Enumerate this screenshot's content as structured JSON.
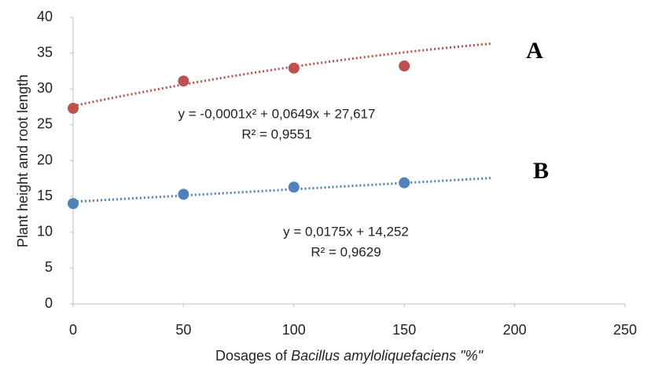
{
  "chart_data": {
    "type": "scatter",
    "xlabel": [
      "Dosages of ",
      "Bacillus amyloliquefaciens \"%\""
    ],
    "ylabel": "Plant height and root length",
    "xlim": [
      0,
      250
    ],
    "xticks": [
      0,
      50,
      100,
      150,
      200,
      250
    ],
    "ylim": [
      0,
      40
    ],
    "yticks": [
      0,
      5,
      10,
      15,
      20,
      25,
      30,
      35,
      40
    ],
    "grid": false,
    "series": [
      {
        "name": "A",
        "color": "#c0504d",
        "x": [
          0,
          50,
          100,
          150
        ],
        "values": [
          27.3,
          31.1,
          32.9,
          33.2
        ],
        "trendline": {
          "coefficients": [
            -0.0001,
            0.0649,
            27.617
          ],
          "x_range": [
            0,
            190
          ],
          "equation": "y = -0,0001x² + 0,0649x + 27,617",
          "r2": "R² = 0,9551"
        }
      },
      {
        "name": "B",
        "color": "#4f81bd",
        "x": [
          0,
          50,
          100,
          150
        ],
        "values": [
          14.0,
          15.3,
          16.3,
          16.9
        ],
        "trendline": {
          "coefficients": [
            0,
            0.0175,
            14.252
          ],
          "x_range": [
            0,
            190
          ],
          "equation": "y = 0,0175x + 14,252",
          "r2": "R² = 0,9629"
        }
      }
    ]
  }
}
